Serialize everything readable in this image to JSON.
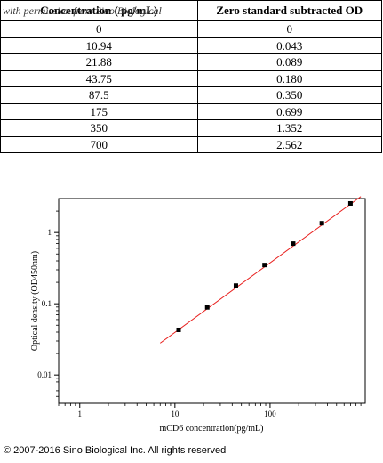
{
  "table": {
    "headers": [
      "Concentration ( pg/mL)",
      "Zero standard subtracted OD"
    ],
    "watermark": "with permission from Sino Biological",
    "rows": [
      [
        "0",
        "0"
      ],
      [
        "10.94",
        "0.043"
      ],
      [
        "21.88",
        "0.089"
      ],
      [
        "43.75",
        "0.180"
      ],
      [
        "87.5",
        "0.350"
      ],
      [
        "175",
        "0.699"
      ],
      [
        "350",
        "1.352"
      ],
      [
        "700",
        "2.562"
      ]
    ]
  },
  "chart_data": {
    "type": "scatter",
    "xscale": "log",
    "yscale": "log",
    "xlim": [
      0.6,
      1000
    ],
    "ylim": [
      0.004,
      3
    ],
    "xticks": [
      1,
      10,
      100
    ],
    "xtick_labels": [
      "1",
      "10",
      "100"
    ],
    "yticks": [
      0.01,
      0.1,
      1
    ],
    "ytick_labels": [
      "0.01",
      "0.1",
      "1"
    ],
    "xlabel": "mCD6 concentration(pg/mL)",
    "ylabel": "Optical density (OD450nm)",
    "grid": false,
    "series": [
      {
        "x": [
          10.94,
          21.88,
          43.75,
          87.5,
          175,
          350,
          700
        ],
        "y": [
          0.043,
          0.089,
          0.18,
          0.35,
          0.699,
          1.352,
          2.562
        ],
        "color": "#000000"
      }
    ],
    "fit_line": {
      "x": [
        7,
        900
      ],
      "y": [
        0.028,
        3.2
      ],
      "color": "#e8201e"
    }
  },
  "footer": {
    "copyright": "© 2007-2016 Sino Biological Inc. All rights reserved"
  }
}
